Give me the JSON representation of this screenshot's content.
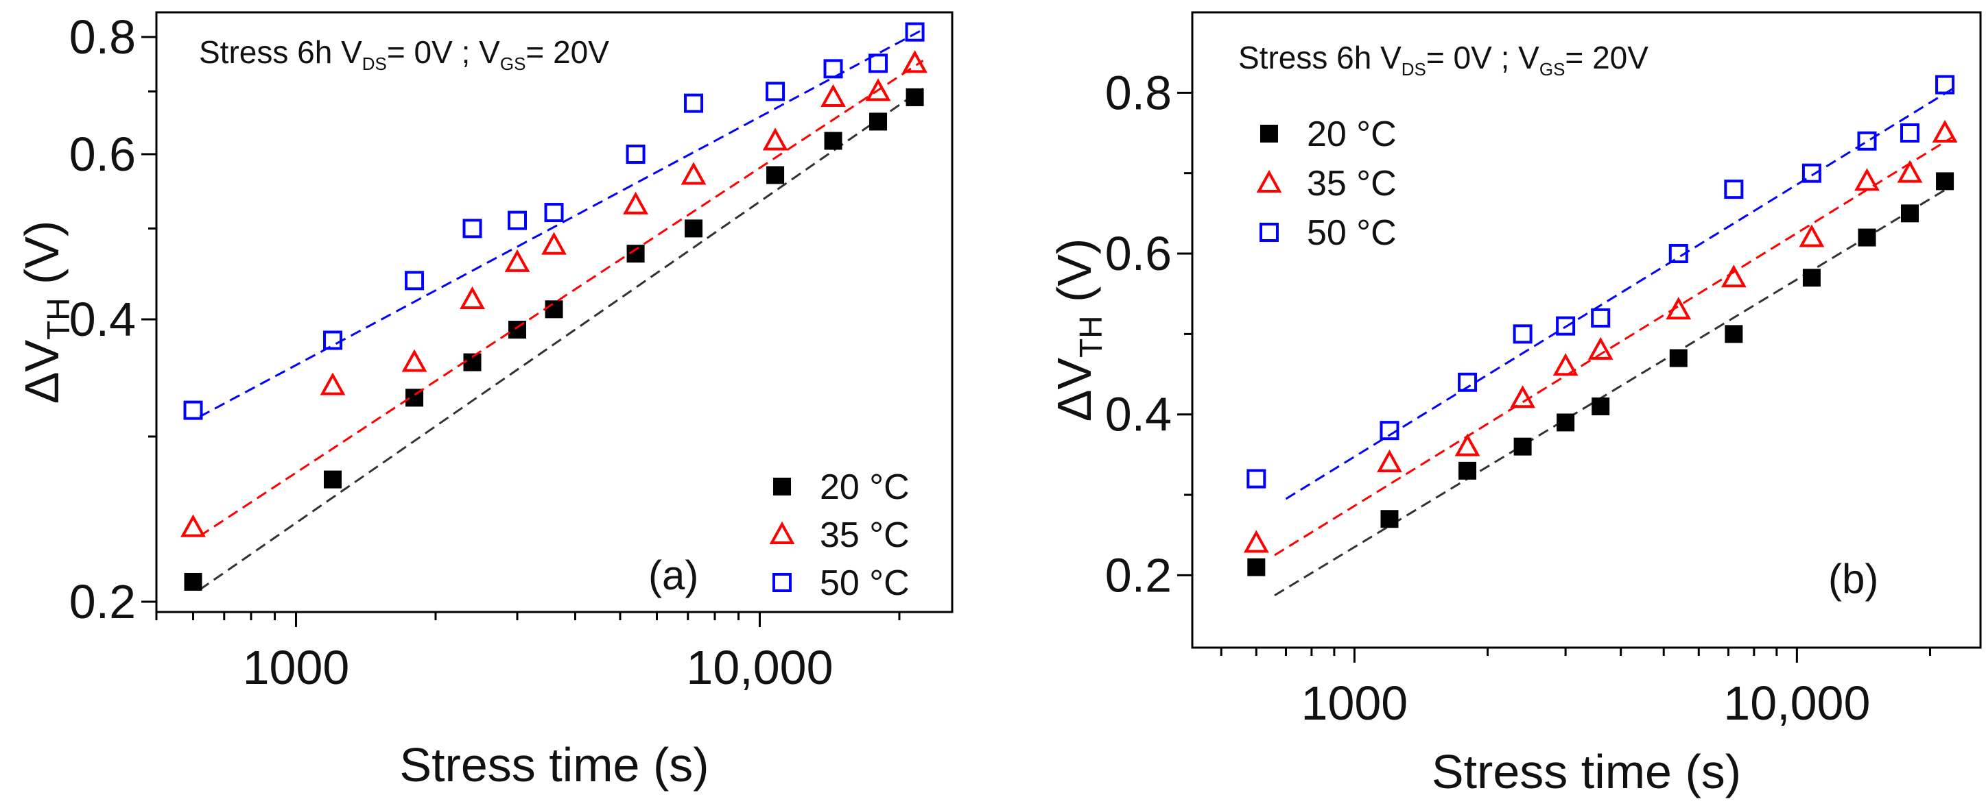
{
  "chart_data": [
    {
      "type": "scatter",
      "panel_label": "(a)",
      "y_scale": "log",
      "x_scale": "log",
      "annotation": {
        "text": "Stress 6h V",
        "sub1": "DS",
        "mid": "= 0V ; V",
        "sub2": "GS",
        "end": "= 20V"
      },
      "xlabel": "Stress time (s)",
      "ylabel": {
        "main": "ΔV",
        "sub": "TH",
        "unit": " (V)"
      },
      "xlim": [
        500,
        26000
      ],
      "ylim": [
        0.195,
        0.85
      ],
      "x_ticks": [
        {
          "value": 1000,
          "label": "1000"
        },
        {
          "value": 10000,
          "label": "10,000"
        }
      ],
      "y_ticks": [
        {
          "value": 0.2,
          "label": "0.2"
        },
        {
          "value": 0.4,
          "label": "0.4"
        },
        {
          "value": 0.6,
          "label": "0.6"
        },
        {
          "value": 0.8,
          "label": "0.8"
        }
      ],
      "legend_position": "bottom-right",
      "series": [
        {
          "name": "20 °C",
          "marker": "filled-square",
          "color": "#000000",
          "fit_color": "#333333",
          "x": [
            600,
            1200,
            1800,
            2400,
            3000,
            3600,
            5400,
            7200,
            10800,
            14400,
            18000,
            21600
          ],
          "y": [
            0.21,
            0.27,
            0.33,
            0.36,
            0.39,
            0.41,
            0.47,
            0.5,
            0.57,
            0.62,
            0.65,
            0.69
          ],
          "fit": {
            "x": [
              620,
              22500
            ],
            "y": [
              0.206,
              0.705
            ]
          }
        },
        {
          "name": "35 °C",
          "marker": "open-triangle",
          "color": "#ff0000",
          "fit_color": "#ff0000",
          "x": [
            600,
            1200,
            1800,
            2400,
            3000,
            3600,
            5400,
            7200,
            10800,
            14400,
            18000,
            21600
          ],
          "y": [
            0.24,
            0.34,
            0.36,
            0.42,
            0.46,
            0.48,
            0.53,
            0.57,
            0.62,
            0.69,
            0.7,
            0.75
          ],
          "fit": {
            "x": [
              620,
              22500
            ],
            "y": [
              0.235,
              0.755
            ]
          }
        },
        {
          "name": "50 °C",
          "marker": "open-square",
          "color": "#0000ff",
          "fit_color": "#0000ff",
          "x": [
            600,
            1200,
            1800,
            2400,
            3000,
            3600,
            5400,
            7200,
            10800,
            14400,
            18000,
            21600
          ],
          "y": [
            0.32,
            0.38,
            0.44,
            0.5,
            0.51,
            0.52,
            0.6,
            0.68,
            0.7,
            0.74,
            0.75,
            0.81
          ],
          "fit": {
            "x": [
              620,
              22500
            ],
            "y": [
              0.315,
              0.815
            ]
          }
        }
      ]
    },
    {
      "type": "scatter",
      "panel_label": "(b)",
      "y_scale": "linear",
      "x_scale": "log",
      "annotation": {
        "text": "Stress 6h V",
        "sub1": "DS",
        "mid": "= 0V ; V",
        "sub2": "GS",
        "end": "= 20V"
      },
      "xlabel": "Stress time (s)",
      "ylabel": {
        "main": "ΔV",
        "sub": "TH",
        "unit": " (V)"
      },
      "xlim": [
        430,
        26000
      ],
      "ylim": [
        0.11,
        0.9
      ],
      "x_ticks": [
        {
          "value": 1000,
          "label": "1000"
        },
        {
          "value": 10000,
          "label": "10,000"
        }
      ],
      "y_ticks": [
        {
          "value": 0.2,
          "label": "0.2"
        },
        {
          "value": 0.4,
          "label": "0.4"
        },
        {
          "value": 0.6,
          "label": "0.6"
        },
        {
          "value": 0.8,
          "label": "0.8"
        }
      ],
      "legend_position": "top-left",
      "series": [
        {
          "name": "20 °C",
          "marker": "filled-square",
          "color": "#000000",
          "fit_color": "#333333",
          "x": [
            600,
            1200,
            1800,
            2400,
            3000,
            3600,
            5400,
            7200,
            10800,
            14400,
            18000,
            21600
          ],
          "y": [
            0.21,
            0.27,
            0.33,
            0.36,
            0.39,
            0.41,
            0.47,
            0.5,
            0.57,
            0.62,
            0.65,
            0.69
          ],
          "fit": {
            "x": [
              660,
              22500
            ],
            "y": [
              0.175,
              0.685
            ]
          }
        },
        {
          "name": "35 °C",
          "marker": "open-triangle",
          "color": "#ff0000",
          "fit_color": "#ff0000",
          "x": [
            600,
            1200,
            1800,
            2400,
            3000,
            3600,
            5400,
            7200,
            10800,
            14400,
            18000,
            21600
          ],
          "y": [
            0.24,
            0.34,
            0.36,
            0.42,
            0.46,
            0.48,
            0.53,
            0.57,
            0.62,
            0.69,
            0.7,
            0.75
          ],
          "fit": {
            "x": [
              660,
              22500
            ],
            "y": [
              0.225,
              0.745
            ]
          }
        },
        {
          "name": "50 °C",
          "marker": "open-square",
          "color": "#0000ff",
          "fit_color": "#0000ff",
          "x": [
            600,
            1200,
            1800,
            2400,
            3000,
            3600,
            5400,
            7200,
            10800,
            14400,
            18000,
            21600
          ],
          "y": [
            0.32,
            0.38,
            0.44,
            0.5,
            0.51,
            0.52,
            0.6,
            0.68,
            0.7,
            0.74,
            0.75,
            0.81
          ],
          "fit": {
            "x": [
              700,
              22500
            ],
            "y": [
              0.295,
              0.805
            ]
          }
        }
      ]
    }
  ]
}
